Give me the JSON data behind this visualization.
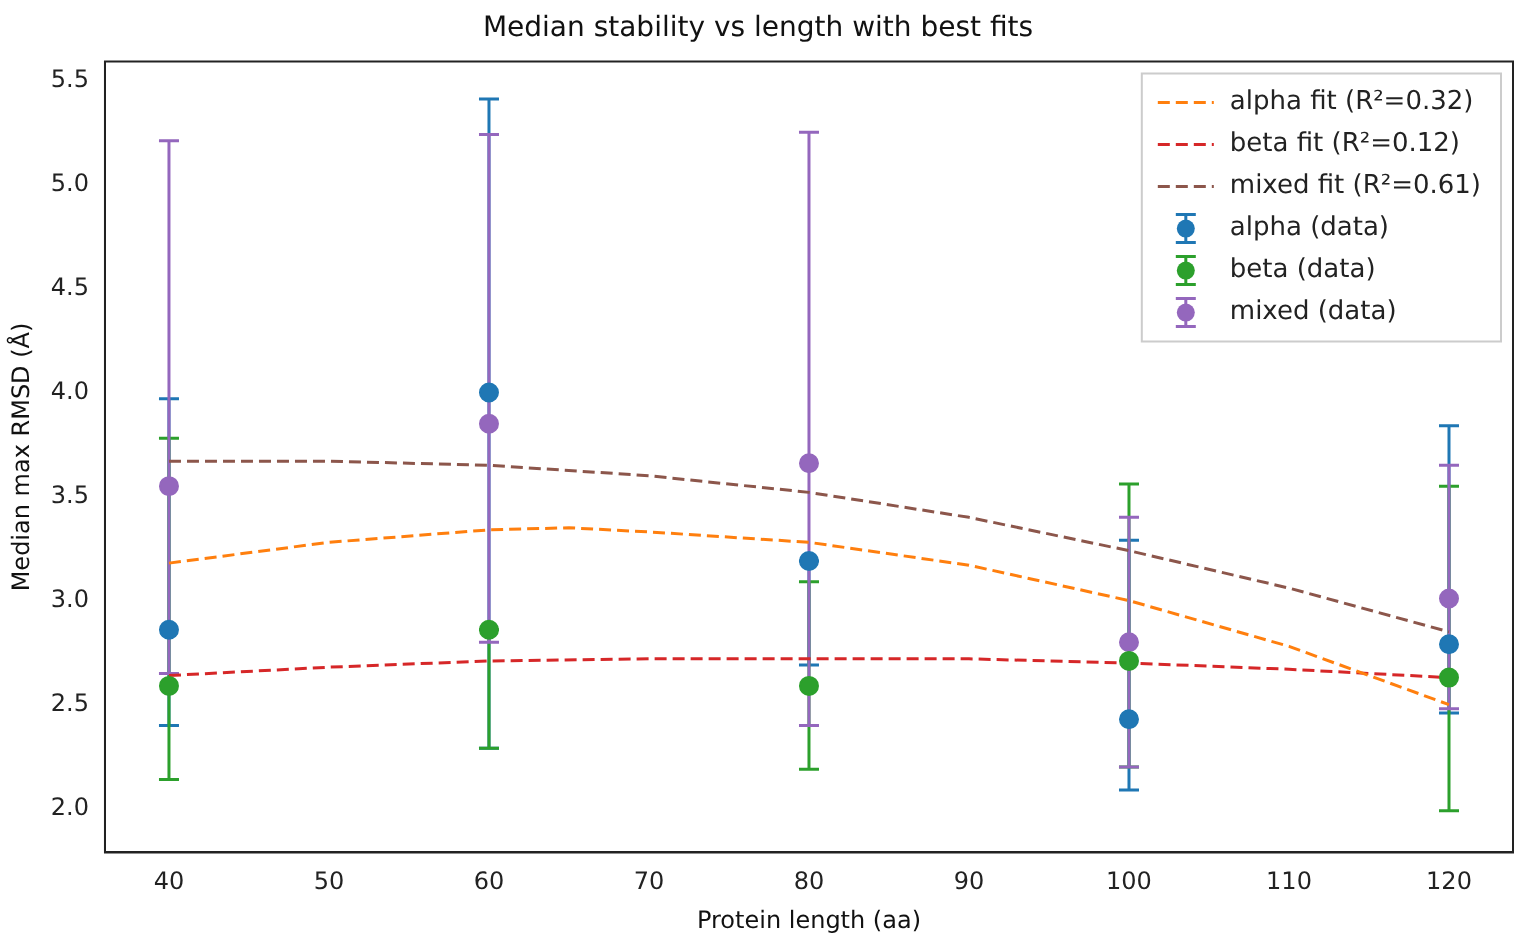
{
  "chart_data": {
    "type": "scatter",
    "title": "Median stability vs length with best fits",
    "xlabel": "Protein length (aa)",
    "ylabel": "Median max RMSD (Å)",
    "xlim": [
      36,
      124
    ],
    "xticks": [
      40,
      50,
      60,
      70,
      80,
      90,
      100,
      110,
      120
    ],
    "ylim": [
      1.79,
      5.59
    ],
    "yticks": [
      {
        "value": 2,
        "label": "2.0"
      },
      2.5,
      {
        "value": 3,
        "label": "3.0"
      },
      3.5,
      {
        "value": 4,
        "label": "4.0"
      },
      4.5,
      {
        "value": 5,
        "label": "5.0"
      },
      5.5
    ],
    "grid": false,
    "legend": "top right",
    "series": [
      {
        "name": "alpha fit (R²=0.32)",
        "type": "line",
        "color": "#ff7f0e",
        "line_style": "dashed",
        "marker": "none",
        "x": [
          40,
          50,
          60,
          65,
          70,
          80,
          90,
          100,
          110,
          120
        ],
        "values": [
          3.18,
          3.28,
          3.34,
          3.35,
          3.33,
          3.28,
          3.17,
          3.0,
          2.78,
          2.5
        ]
      },
      {
        "name": "beta fit (R²=0.12)",
        "type": "line",
        "color": "#d62728",
        "line_style": "dashed",
        "marker": "none",
        "x": [
          40,
          50,
          60,
          70,
          80,
          90,
          100,
          110,
          120
        ],
        "values": [
          2.64,
          2.68,
          2.71,
          2.72,
          2.72,
          2.72,
          2.7,
          2.67,
          2.63
        ]
      },
      {
        "name": "mixed fit (R²=0.61)",
        "type": "line",
        "color": "#8c564b",
        "line_style": "dashed",
        "marker": "none",
        "x": [
          40,
          50,
          60,
          70,
          80,
          90,
          100,
          110,
          120
        ],
        "values": [
          3.67,
          3.67,
          3.65,
          3.6,
          3.52,
          3.4,
          3.24,
          3.06,
          2.85
        ]
      },
      {
        "name": "alpha (data)",
        "type": "scatter",
        "color": "#1f77b4",
        "marker": "circle",
        "x": [
          40,
          60,
          80,
          100,
          120
        ],
        "values": [
          2.86,
          4.0,
          3.19,
          2.43,
          2.79
        ],
        "errors": [
          [
            2.4,
            3.97
          ],
          [
            2.29,
            5.41
          ],
          [
            2.69,
            3.19
          ],
          [
            2.09,
            3.29
          ],
          [
            2.46,
            3.84
          ]
        ]
      },
      {
        "name": "beta (data)",
        "type": "scatter",
        "color": "#2ca02c",
        "marker": "circle",
        "x": [
          40,
          60,
          80,
          100,
          120
        ],
        "values": [
          2.59,
          2.86,
          2.59,
          2.71,
          2.63
        ],
        "errors": [
          [
            2.14,
            3.78
          ],
          [
            2.29,
            2.86
          ],
          [
            2.19,
            3.09
          ],
          [
            2.2,
            3.56
          ],
          [
            1.99,
            3.55
          ]
        ]
      },
      {
        "name": "mixed (data)",
        "type": "scatter",
        "color": "#9467bd",
        "marker": "circle",
        "x": [
          40,
          60,
          80,
          100,
          120
        ],
        "values": [
          3.55,
          3.85,
          3.66,
          2.8,
          3.01
        ],
        "errors": [
          [
            2.65,
            5.21
          ],
          [
            2.8,
            5.24
          ],
          [
            2.4,
            5.25
          ],
          [
            2.2,
            3.4
          ],
          [
            2.48,
            3.65
          ]
        ]
      }
    ]
  }
}
